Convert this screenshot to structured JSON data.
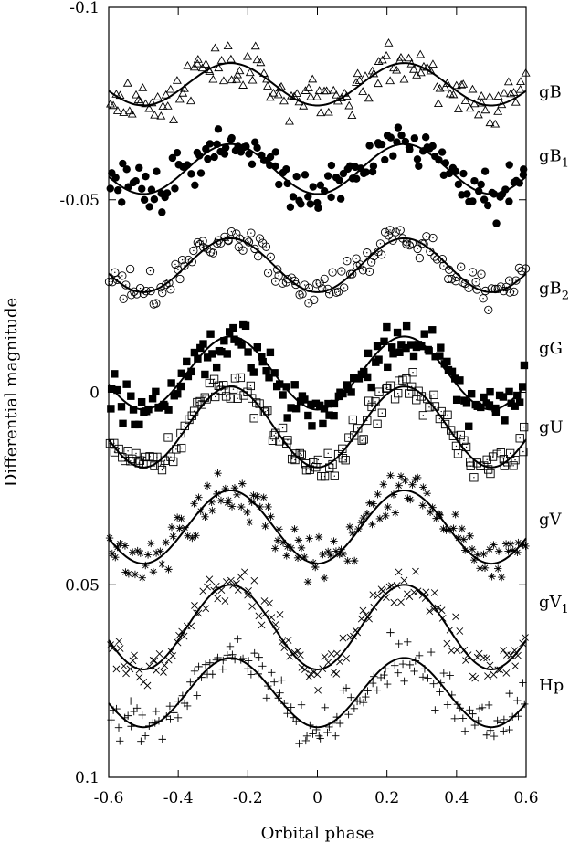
{
  "chart_data": {
    "type": "scatter",
    "xlabel": "Orbital phase",
    "ylabel": "Differential magnitude",
    "xlim": [
      -0.6,
      0.6
    ],
    "ylim": [
      -0.1,
      0.1
    ],
    "y_inverted": true,
    "grid": false,
    "x_ticks": [
      {
        "value": -0.6,
        "label": "-0.6"
      },
      {
        "value": -0.4,
        "label": "-0.4"
      },
      {
        "value": -0.2,
        "label": "-0.2"
      },
      {
        "value": 0,
        "label": "0"
      },
      {
        "value": 0.2,
        "label": "0.2"
      },
      {
        "value": 0.4,
        "label": "0.4"
      },
      {
        "value": 0.6,
        "label": "0.6"
      }
    ],
    "y_ticks": [
      {
        "value": -0.1,
        "label": "-0.1"
      },
      {
        "value": -0.05,
        "label": "-0.05"
      },
      {
        "value": 0,
        "label": "0"
      },
      {
        "value": 0.05,
        "label": "0.05"
      },
      {
        "value": 0.1,
        "label": "0.1"
      }
    ],
    "series": [
      {
        "name": "gB",
        "name_main": "gB",
        "name_sub": "",
        "marker": "triangle-open",
        "center": -0.08,
        "amplitude": 0.0055,
        "scatter": 0.0042,
        "n_points": 150,
        "label_y": -0.078
      },
      {
        "name": "gB1",
        "name_main": "gB",
        "name_sub": "1",
        "marker": "circle-filled",
        "center": -0.058,
        "amplitude": 0.0065,
        "scatter": 0.0042,
        "n_points": 150,
        "label_y": -0.0615
      },
      {
        "name": "gB2",
        "name_main": "gB",
        "name_sub": "2",
        "marker": "circle-open",
        "center": -0.033,
        "amplitude": 0.007,
        "scatter": 0.003,
        "n_points": 150,
        "label_y": -0.027
      },
      {
        "name": "gG",
        "name_main": "gG",
        "name_sub": "",
        "marker": "square-filled",
        "center": -0.005,
        "amplitude": 0.0095,
        "scatter": 0.0042,
        "n_points": 150,
        "label_y": -0.0115
      },
      {
        "name": "gU",
        "name_main": "gU",
        "name_sub": "",
        "marker": "square-dot",
        "center": 0.009,
        "amplitude": 0.0105,
        "scatter": 0.003,
        "n_points": 150,
        "label_y": 0.009
      },
      {
        "name": "gV",
        "name_main": "gV",
        "name_sub": "",
        "marker": "asterisk",
        "center": 0.035,
        "amplitude": 0.0095,
        "scatter": 0.0042,
        "n_points": 150,
        "label_y": 0.033
      },
      {
        "name": "gV1",
        "name_main": "gV",
        "name_sub": "1",
        "marker": "cross",
        "center": 0.061,
        "amplitude": 0.011,
        "scatter": 0.004,
        "n_points": 150,
        "label_y": 0.0545
      },
      {
        "name": "Hp",
        "name_main": "Hp",
        "name_sub": "",
        "marker": "plus",
        "center": 0.078,
        "amplitude": 0.009,
        "scatter": 0.0042,
        "n_points": 150,
        "label_y": 0.076
      }
    ]
  }
}
